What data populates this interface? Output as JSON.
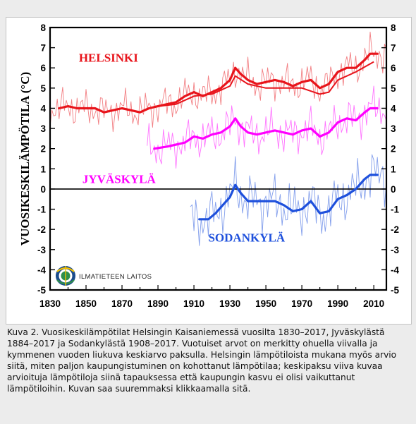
{
  "chart_data": {
    "type": "line",
    "ylabel": "VUOSIKESKILÄMPÖTILA (°C)",
    "xlabel": "",
    "xlim": [
      1830,
      2017
    ],
    "ylim": [
      -5,
      8
    ],
    "x_ticks": [
      1830,
      1850,
      1870,
      1890,
      1910,
      1930,
      1950,
      1970,
      1990,
      2010
    ],
    "y_ticks": [
      -5,
      -4,
      -3,
      -2,
      -1,
      0,
      1,
      2,
      3,
      4,
      5,
      6,
      7,
      8
    ],
    "grid": false,
    "series": [
      {
        "name": "HELSINKI",
        "color": "#e8141b",
        "moving_average_x": [
          1835,
          1840,
          1845,
          1850,
          1855,
          1860,
          1865,
          1870,
          1875,
          1880,
          1885,
          1890,
          1895,
          1900,
          1905,
          1910,
          1915,
          1920,
          1925,
          1930,
          1933,
          1936,
          1940,
          1945,
          1950,
          1955,
          1960,
          1965,
          1970,
          1975,
          1980,
          1985,
          1990,
          1995,
          2000,
          2005,
          2008,
          2012
        ],
        "moving_average_y": [
          4.0,
          4.1,
          4.0,
          4.0,
          4.0,
          3.8,
          3.9,
          4.0,
          3.9,
          3.8,
          4.0,
          4.1,
          4.2,
          4.3,
          4.6,
          4.8,
          4.6,
          4.8,
          5.0,
          5.4,
          6.0,
          5.7,
          5.4,
          5.2,
          5.3,
          5.4,
          5.3,
          5.1,
          5.3,
          5.4,
          5.0,
          5.2,
          5.8,
          6.0,
          6.0,
          6.4,
          6.7,
          6.7
        ],
        "urban_corrected_x": [
          1890,
          1900,
          1910,
          1920,
          1930,
          1933,
          1940,
          1950,
          1960,
          1970,
          1980,
          1985,
          1990,
          2000,
          2010
        ],
        "urban_corrected_y": [
          4.1,
          4.2,
          4.6,
          4.7,
          5.1,
          5.6,
          5.2,
          5.0,
          5.0,
          5.0,
          4.7,
          4.8,
          5.4,
          5.8,
          6.3
        ]
      },
      {
        "name": "JYVÄSKYLÄ",
        "color": "#ff00ff",
        "moving_average_x": [
          1888,
          1895,
          1900,
          1905,
          1910,
          1915,
          1920,
          1925,
          1930,
          1933,
          1936,
          1940,
          1945,
          1950,
          1955,
          1960,
          1965,
          1970,
          1975,
          1980,
          1985,
          1990,
          1995,
          2000,
          2005,
          2008,
          2012
        ],
        "moving_average_y": [
          2.0,
          2.1,
          2.2,
          2.3,
          2.6,
          2.5,
          2.7,
          2.8,
          3.1,
          3.5,
          3.1,
          2.8,
          2.7,
          2.8,
          2.9,
          2.8,
          2.7,
          2.9,
          3.0,
          2.6,
          2.8,
          3.3,
          3.5,
          3.4,
          3.8,
          4.0,
          4.0
        ]
      },
      {
        "name": "SODANKYLÄ",
        "color": "#1e50dc",
        "moving_average_x": [
          1913,
          1918,
          1922,
          1926,
          1930,
          1933,
          1936,
          1940,
          1945,
          1950,
          1955,
          1960,
          1965,
          1970,
          1975,
          1980,
          1985,
          1990,
          1995,
          2000,
          2005,
          2008,
          2012
        ],
        "moving_average_y": [
          -1.5,
          -1.5,
          -1.2,
          -0.8,
          -0.4,
          0.2,
          -0.2,
          -0.6,
          -0.6,
          -0.6,
          -0.6,
          -0.8,
          -1.1,
          -1.0,
          -0.6,
          -1.2,
          -1.1,
          -0.5,
          -0.3,
          0.0,
          0.5,
          0.7,
          0.7
        ]
      }
    ]
  },
  "logo": {
    "text": "ILMATIETEEN LAITOS"
  },
  "caption": {
    "text": "Kuva 2. Vuosikeskilämpötilat Helsingin Kaisaniemessä vuosilta 1830–2017, Jyväskylästä 1884–2017 ja Sodankylästä 1908–2017. Vuotuiset arvot on merkitty ohuella viivalla ja kymmenen vuoden liukuva keskiarvo paksulla. Helsingin lämpötiloista mukana myös arvio siitä, miten paljon kaupungistuminen on kohottanut lämpötilaa; keskipaksu viiva kuvaa arvioituja lämpötiloja siinä tapauksessa että kaupungin kasvu ei olisi vaikuttanut lämpötiloihin. Kuvan saa suuremmaksi klikkaamalla sitä."
  }
}
